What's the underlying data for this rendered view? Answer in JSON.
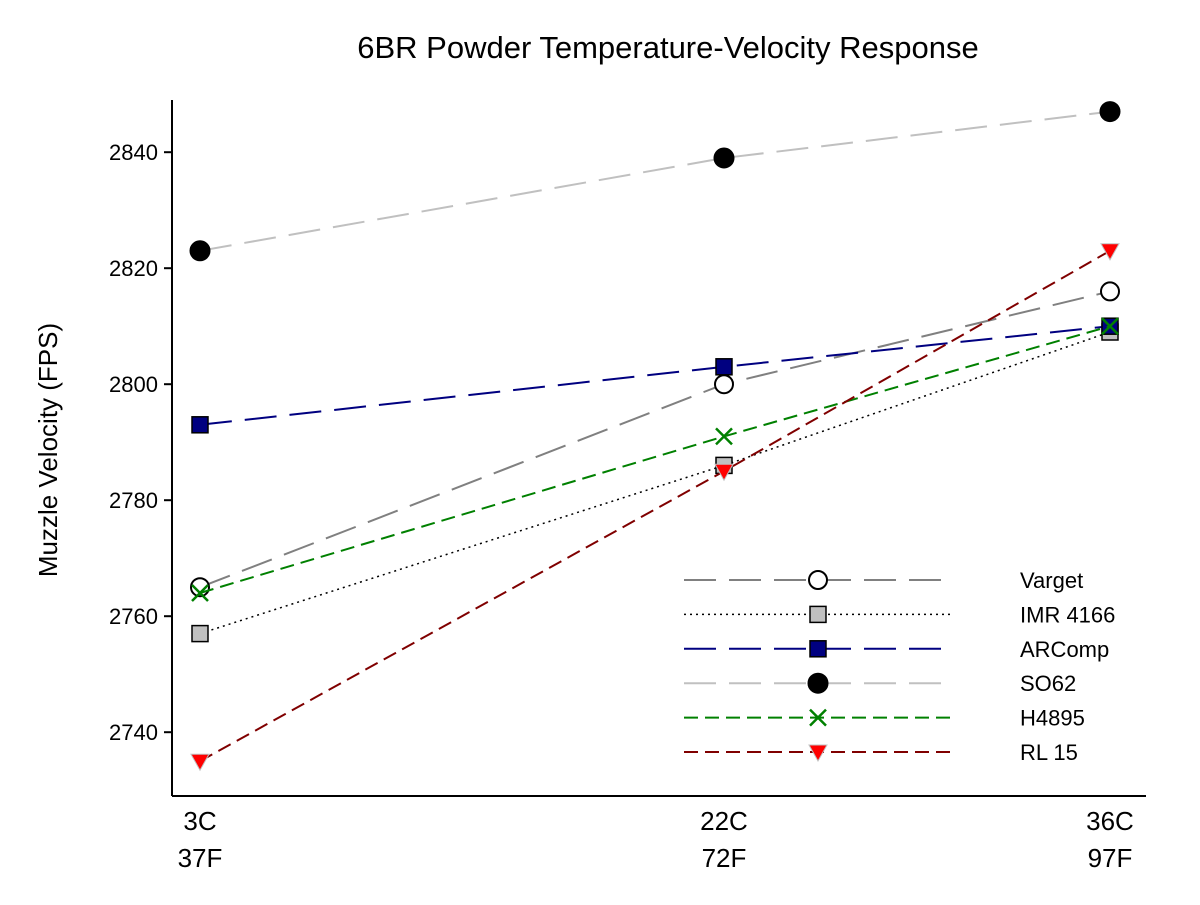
{
  "chart_data": {
    "type": "line",
    "title": "6BR Powder Temperature-Velocity Response",
    "xlabel": "",
    "ylabel": "Muzzle Velocity (FPS)",
    "categories": [
      {
        "top": "3C",
        "bottom": "37F"
      },
      {
        "top": "22C",
        "bottom": "72F"
      },
      {
        "top": "36C",
        "bottom": "97F"
      }
    ],
    "x": [
      3,
      22,
      36
    ],
    "xlim": [
      3,
      36
    ],
    "ylim": [
      2729,
      2849
    ],
    "yticks": [
      2740,
      2760,
      2780,
      2800,
      2820,
      2840
    ],
    "grid": false,
    "legend_position": "bottom-right",
    "series": [
      {
        "name": "Varget",
        "values": [
          2765,
          2800,
          2816
        ],
        "color": "#808080",
        "dash": "long-dash",
        "marker": "circle-open"
      },
      {
        "name": "IMR 4166",
        "values": [
          2757,
          2786,
          2809
        ],
        "color": "#000000",
        "dash": "dotted",
        "marker": "square-gray"
      },
      {
        "name": "ARComp",
        "values": [
          2793,
          2803,
          2810
        ],
        "color": "#000080",
        "dash": "long-dash",
        "marker": "square-navy"
      },
      {
        "name": "SO62",
        "values": [
          2823,
          2839,
          2847
        ],
        "color": "#c0c0c0",
        "dash": "long-dash",
        "marker": "circle-black"
      },
      {
        "name": "H4895",
        "values": [
          2764,
          2791,
          2810
        ],
        "color": "#008000",
        "dash": "dash",
        "marker": "x-green"
      },
      {
        "name": "RL 15",
        "values": [
          2735,
          2785,
          2823
        ],
        "color": "#800000",
        "dash": "dash",
        "marker": "triangle-red"
      }
    ]
  }
}
